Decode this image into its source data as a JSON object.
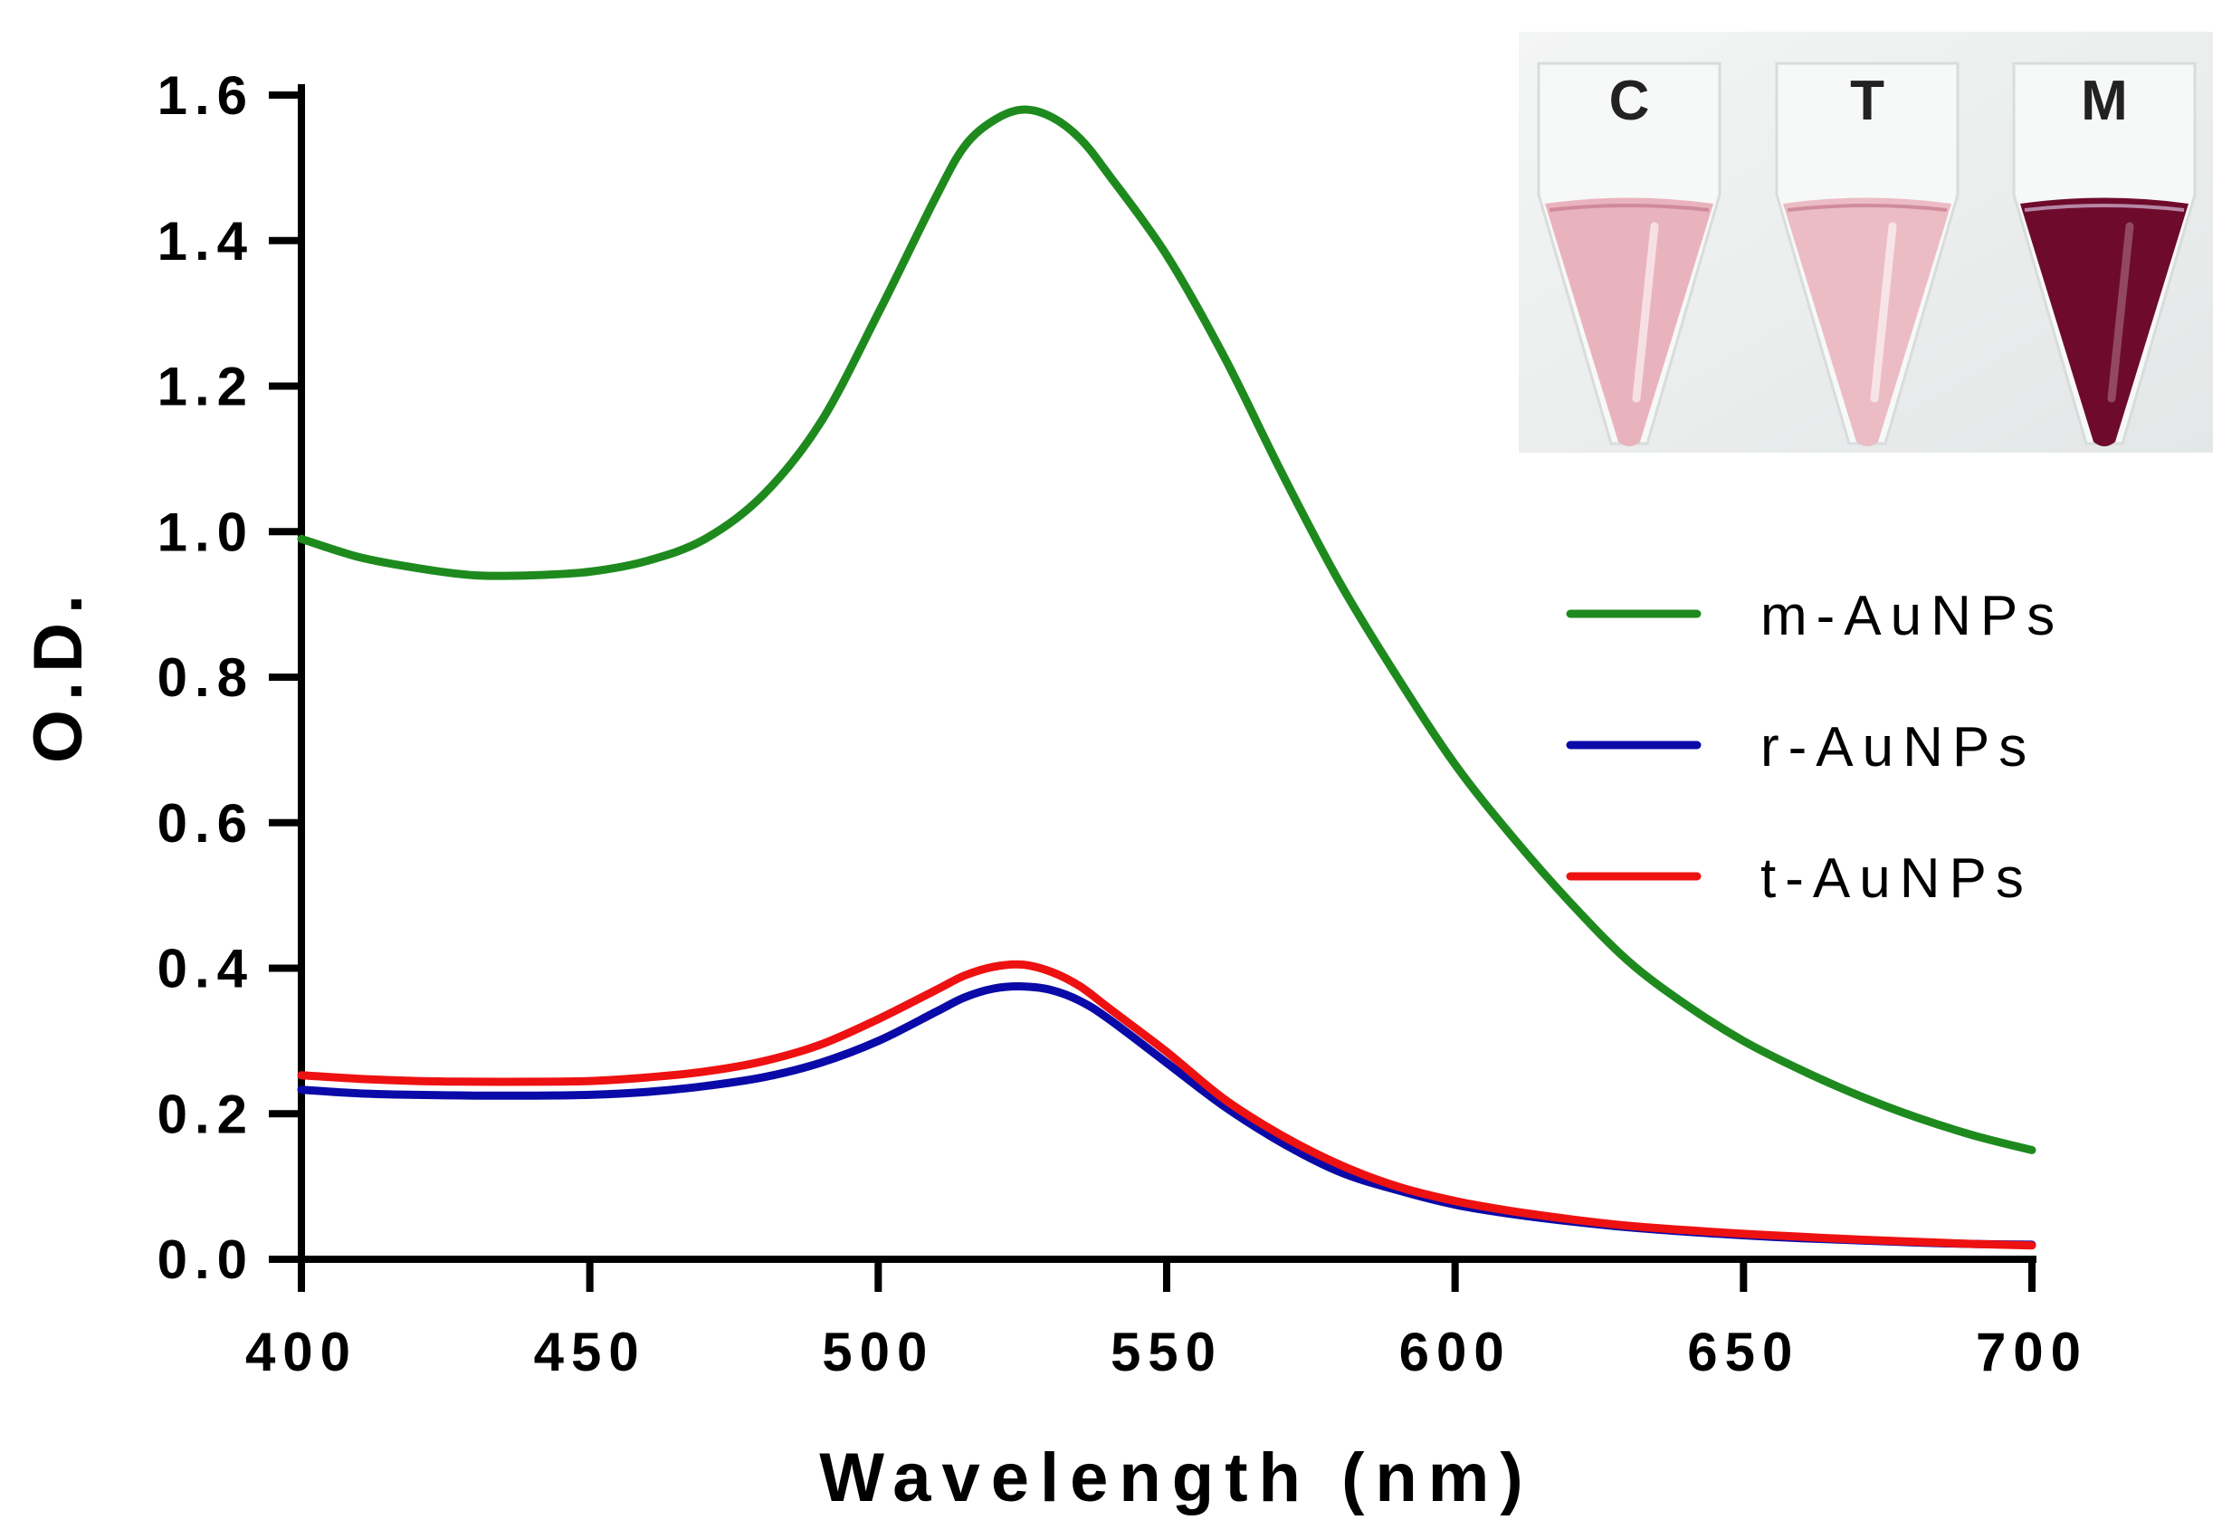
{
  "chart_data": {
    "type": "line",
    "title": "",
    "xlabel": "Wavelength (nm)",
    "ylabel": "O.D.",
    "xlim": [
      400,
      700
    ],
    "ylim": [
      0.0,
      1.6
    ],
    "x_ticks": [
      400,
      450,
      500,
      550,
      600,
      650,
      700
    ],
    "x_tick_labels": [
      "400",
      "450",
      "500",
      "550",
      "600",
      "650",
      "700"
    ],
    "y_ticks": [
      0.0,
      0.2,
      0.4,
      0.6,
      0.8,
      1.0,
      1.2,
      1.4,
      1.6
    ],
    "y_tick_labels": [
      "0.0",
      "0.2",
      "0.4",
      "0.6",
      "0.8",
      "1.0",
      "1.2",
      "1.4",
      "1.6"
    ],
    "grid": false,
    "legend_position": "right",
    "x": [
      400,
      410,
      420,
      430,
      440,
      450,
      460,
      470,
      480,
      490,
      500,
      510,
      515,
      520,
      525,
      530,
      535,
      540,
      550,
      560,
      570,
      580,
      590,
      600,
      610,
      620,
      630,
      640,
      650,
      660,
      670,
      680,
      690,
      700
    ],
    "series": [
      {
        "name": "m-AuNPs",
        "color": "#1e8a1e",
        "values": [
          0.99,
          0.965,
          0.95,
          0.94,
          0.94,
          0.945,
          0.96,
          0.99,
          1.05,
          1.15,
          1.3,
          1.46,
          1.53,
          1.565,
          1.58,
          1.57,
          1.54,
          1.49,
          1.38,
          1.24,
          1.08,
          0.93,
          0.8,
          0.68,
          0.58,
          0.49,
          0.41,
          0.35,
          0.3,
          0.26,
          0.225,
          0.195,
          0.17,
          0.15
        ]
      },
      {
        "name": "r-AuNPs",
        "color": "#0a0aa8",
        "values": [
          0.233,
          0.228,
          0.226,
          0.225,
          0.225,
          0.226,
          0.23,
          0.238,
          0.25,
          0.27,
          0.3,
          0.34,
          0.36,
          0.372,
          0.375,
          0.37,
          0.355,
          0.33,
          0.27,
          0.21,
          0.16,
          0.12,
          0.095,
          0.075,
          0.062,
          0.052,
          0.044,
          0.038,
          0.033,
          0.029,
          0.026,
          0.023,
          0.021,
          0.02
        ]
      },
      {
        "name": "t-AuNPs",
        "color": "#ee1111",
        "values": [
          0.253,
          0.248,
          0.245,
          0.244,
          0.244,
          0.245,
          0.25,
          0.258,
          0.272,
          0.295,
          0.33,
          0.37,
          0.39,
          0.402,
          0.405,
          0.395,
          0.375,
          0.345,
          0.285,
          0.22,
          0.17,
          0.13,
          0.1,
          0.08,
          0.066,
          0.055,
          0.046,
          0.04,
          0.035,
          0.031,
          0.027,
          0.024,
          0.021,
          0.019
        ]
      }
    ]
  },
  "inset": {
    "tube_labels": [
      "C",
      "T",
      "M"
    ],
    "tube_colors": [
      "#e9b3bd",
      "#ecbcc5",
      "#6e0b2c"
    ],
    "background_color": "#eef0f0"
  }
}
